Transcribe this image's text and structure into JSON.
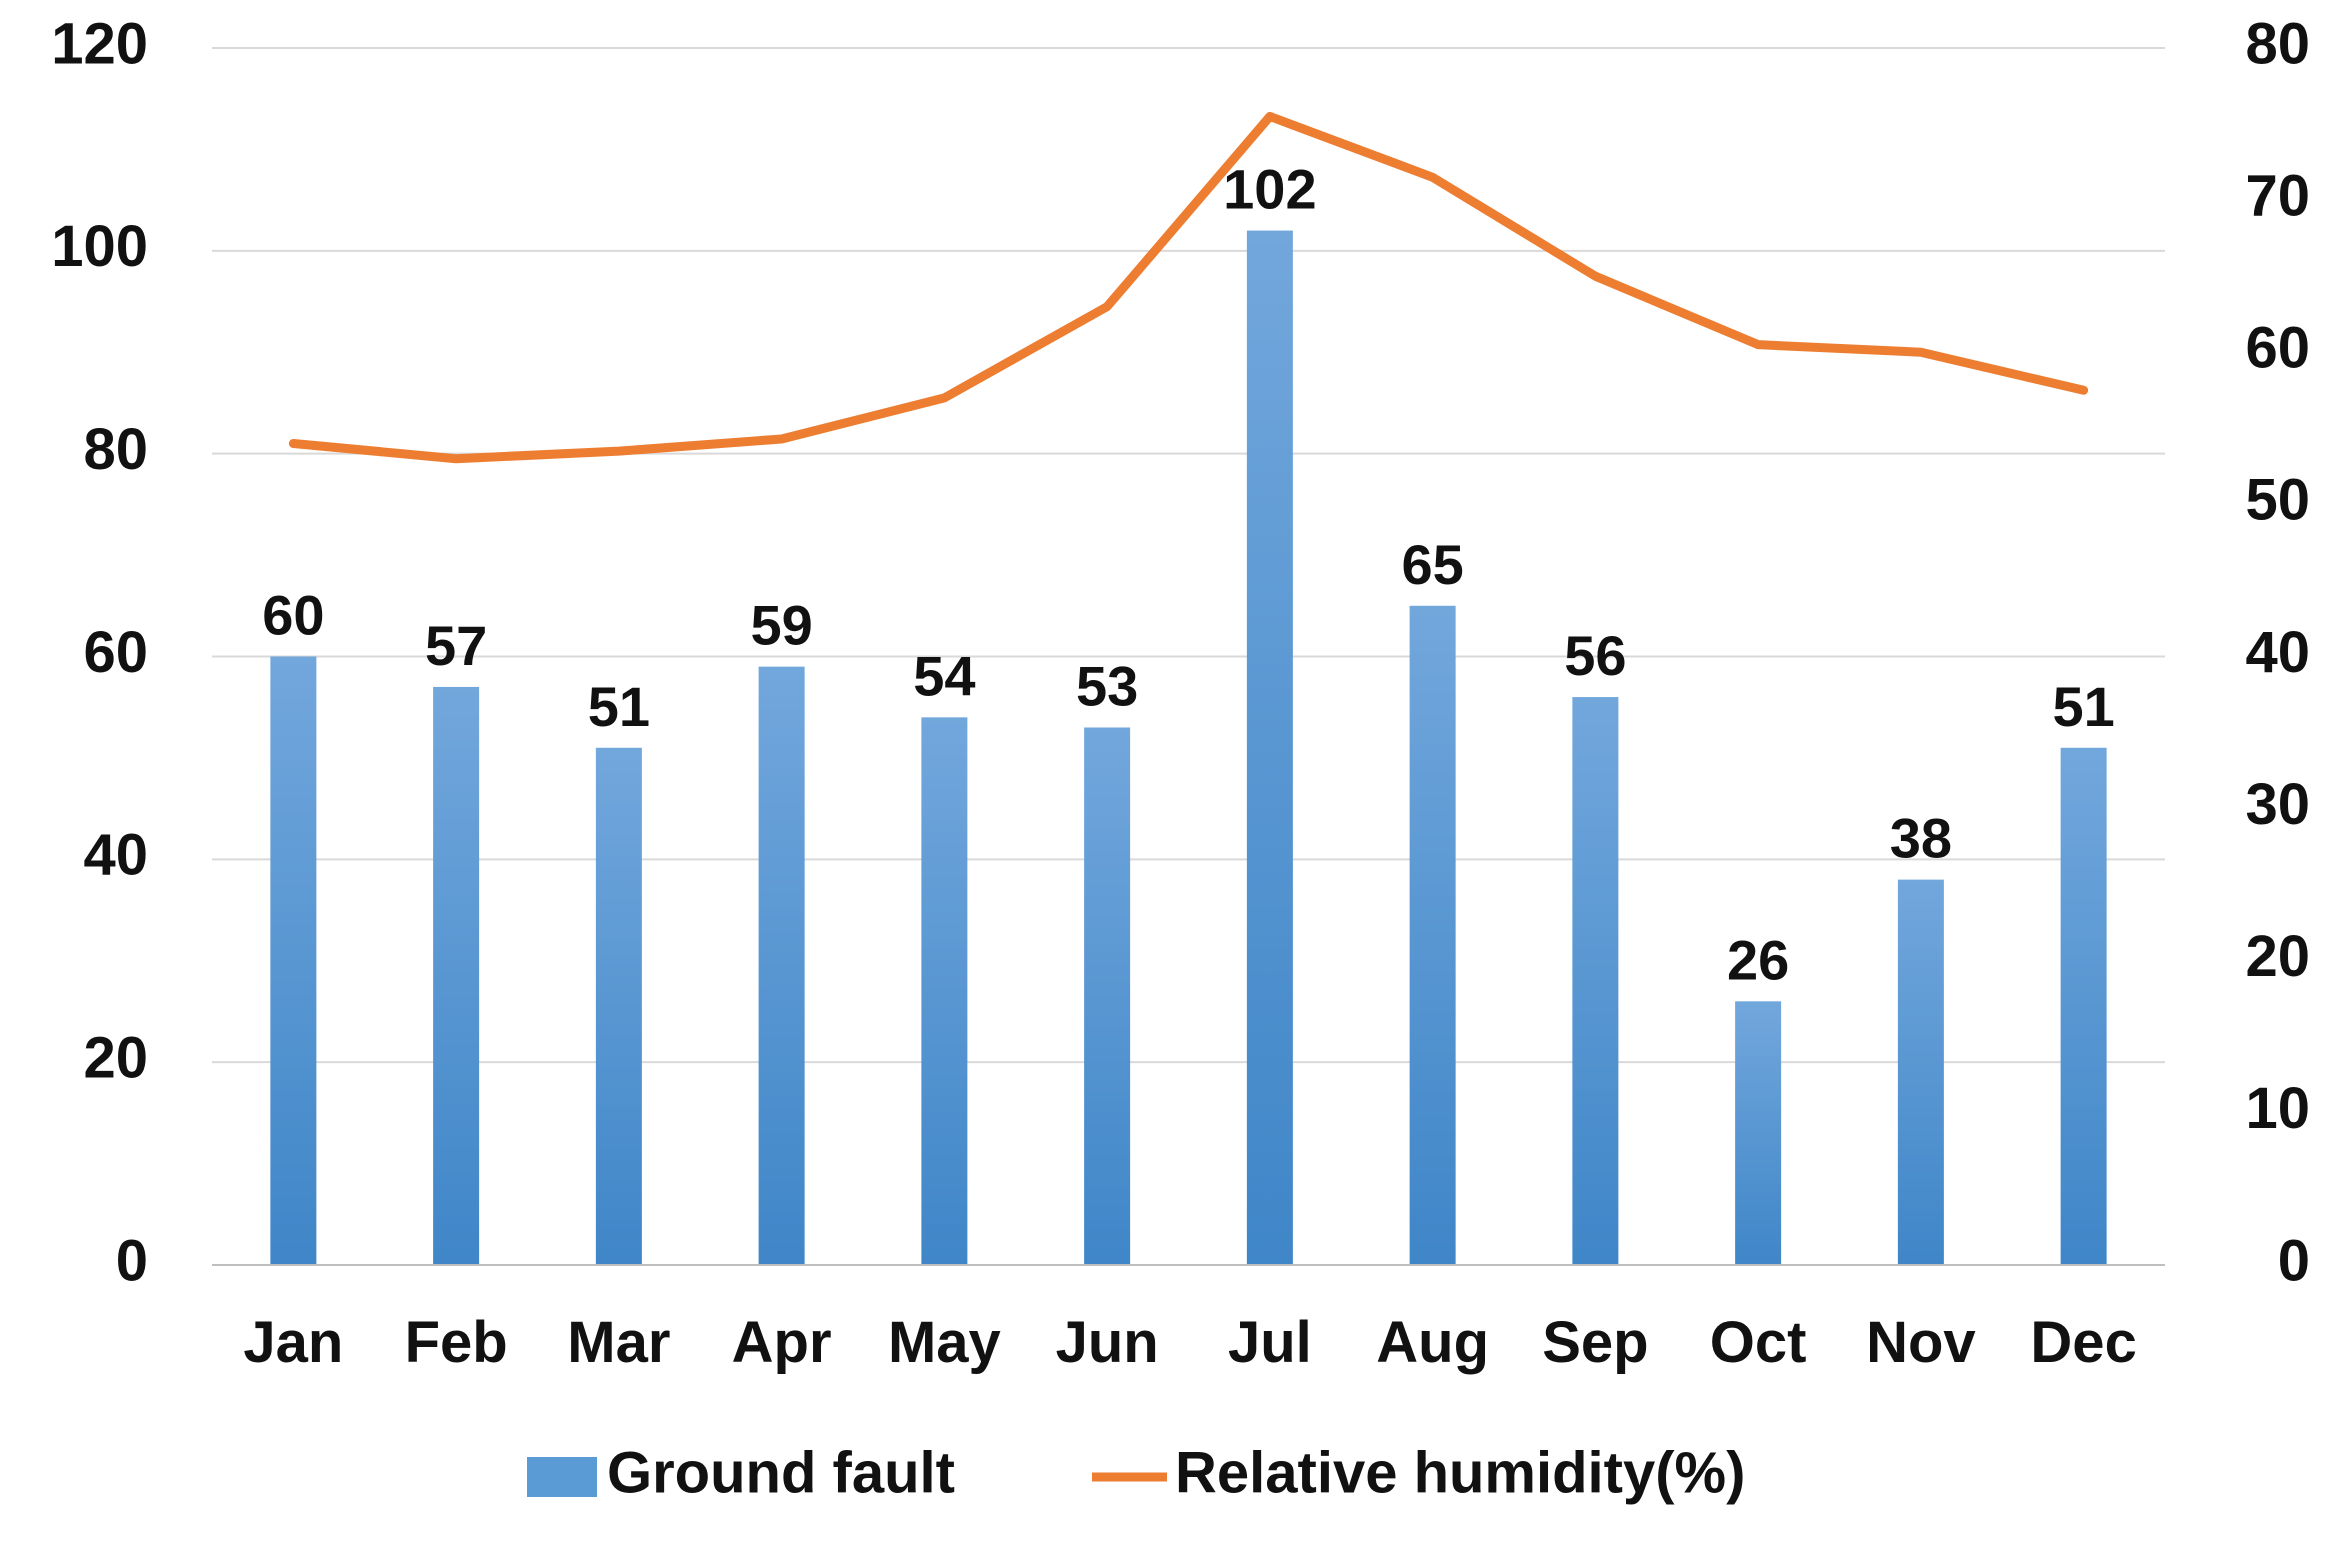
{
  "chart_data": {
    "type": "bar",
    "categories": [
      "Jan",
      "Feb",
      "Mar",
      "Apr",
      "May",
      "Jun",
      "Jul",
      "Aug",
      "Sep",
      "Oct",
      "Nov",
      "Dec"
    ],
    "series": [
      {
        "name": "Ground fault",
        "type": "bar",
        "axis": "left",
        "color": "#5B9BD5",
        "values": [
          60,
          57,
          51,
          59,
          54,
          53,
          102,
          65,
          56,
          26,
          38,
          51
        ],
        "data_labels": [
          "60",
          "57",
          "51",
          "59",
          "54",
          "53",
          "102",
          "65",
          "56",
          "26",
          "38",
          "51"
        ]
      },
      {
        "name": "Relative humidity(%)",
        "type": "line",
        "axis": "right",
        "color": "#ED7D31",
        "values": [
          54,
          53,
          53.5,
          54.3,
          57,
          63,
          75.5,
          71.5,
          65,
          60.5,
          60,
          57.5
        ]
      }
    ],
    "y_left": {
      "ylim": [
        0,
        120
      ],
      "ticks": [
        "0",
        "20",
        "40",
        "60",
        "80",
        "100",
        "120"
      ]
    },
    "y_right": {
      "ylim": [
        0,
        80
      ],
      "ticks": [
        "0",
        "10",
        "20",
        "30",
        "40",
        "50",
        "60",
        "70",
        "80"
      ]
    },
    "grid": true,
    "legend_position": "bottom"
  }
}
